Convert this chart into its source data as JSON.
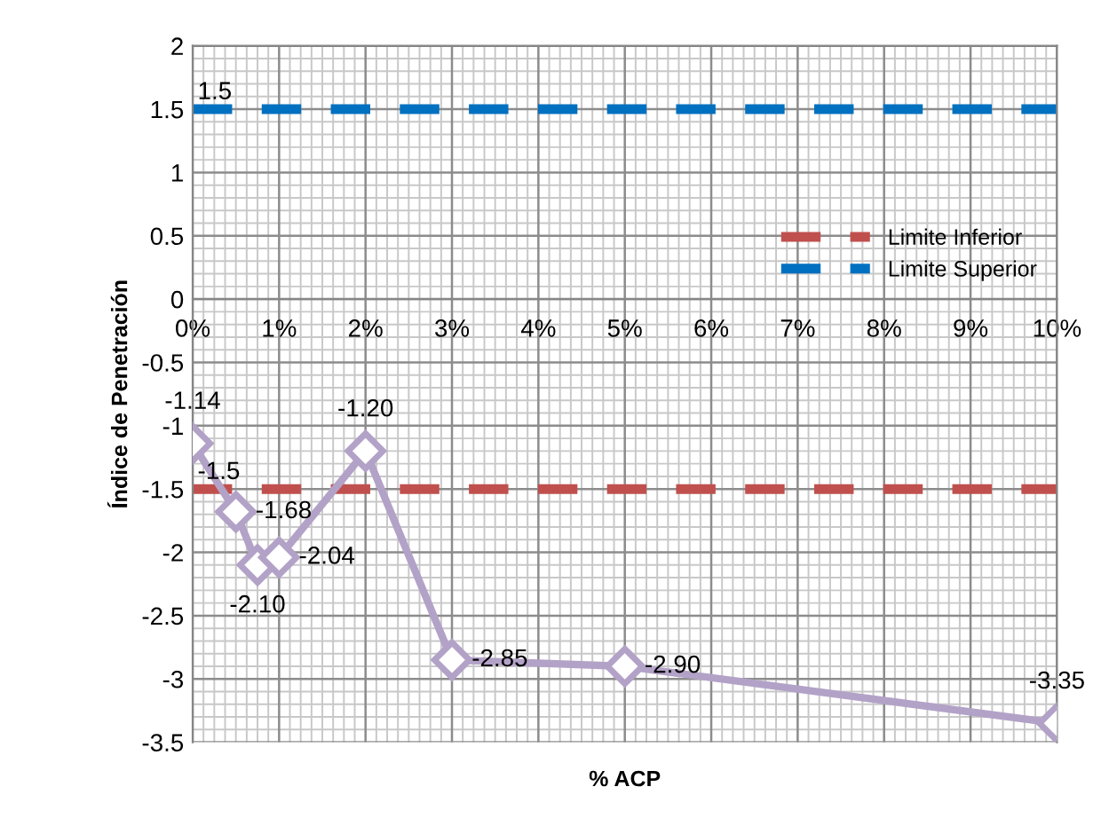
{
  "chart_data": {
    "type": "line",
    "xlabel": "% ACP",
    "ylabel": "Índice de Penetración",
    "x": [
      0,
      0.5,
      0.75,
      1,
      2,
      3,
      5,
      10
    ],
    "series": [
      {
        "color": "#b3a2c7",
        "values": [
          -1.14,
          -1.68,
          -2.1,
          -2.04,
          -1.2,
          -2.85,
          -2.9,
          -3.35
        ],
        "value_labels": [
          "-1.14",
          "-1.68",
          "-2.10",
          "-2.04",
          "-1.20",
          "-2.85",
          "-2.90",
          "-3.35"
        ]
      }
    ],
    "xlim": [
      0,
      10
    ],
    "xticks": [
      {
        "value": 0,
        "label": "0%"
      },
      {
        "value": 1,
        "label": "1%"
      },
      {
        "value": 2,
        "label": "2%"
      },
      {
        "value": 3,
        "label": "3%"
      },
      {
        "value": 4,
        "label": "4%"
      },
      {
        "value": 5,
        "label": "5%"
      },
      {
        "value": 6,
        "label": "6%"
      },
      {
        "value": 7,
        "label": "7%"
      },
      {
        "value": 8,
        "label": "8%"
      },
      {
        "value": 9,
        "label": "9%"
      },
      {
        "value": 10,
        "label": "10%"
      }
    ],
    "ylim": [
      -3.5,
      2
    ],
    "yticks": [
      -3.5,
      -3,
      -2.5,
      -2,
      -1.5,
      -1,
      -0.5,
      0,
      0.5,
      1,
      1.5,
      2
    ],
    "ref_lines": [
      {
        "axis": "y",
        "value": -1.5,
        "label": "Limite Inferior",
        "color": "#c0504d",
        "line_style": "dashed"
      },
      {
        "axis": "y",
        "value": 1.5,
        "label": "Limite Superior",
        "color": "#0070c0",
        "line_style": "dashed"
      }
    ],
    "annotations": [
      {
        "text": "1.5",
        "x": 0,
        "y": 1.5
      },
      {
        "text": "-1.5",
        "x": 0,
        "y": -1.5
      }
    ],
    "marker": "diamond",
    "line_style": "solid",
    "grid": true,
    "legend": "right"
  }
}
